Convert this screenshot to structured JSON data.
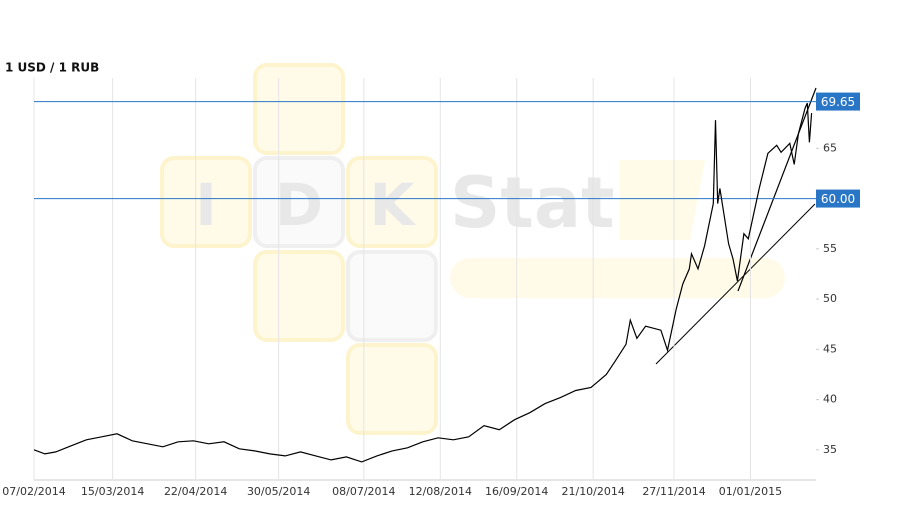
{
  "chart_data": {
    "type": "line",
    "title": "1 USD / 1 RUB",
    "watermark": {
      "letters": [
        "I",
        "D",
        "K"
      ],
      "word": "Stat"
    },
    "x": [
      "07/02/2014",
      "12/02/2014",
      "17/02/2014",
      "24/02/2014",
      "03/03/2014",
      "10/03/2014",
      "17/03/2014",
      "24/03/2014",
      "31/03/2014",
      "07/04/2014",
      "14/04/2014",
      "21/04/2014",
      "28/04/2014",
      "05/05/2014",
      "12/05/2014",
      "19/05/2014",
      "26/05/2014",
      "02/06/2014",
      "09/06/2014",
      "16/06/2014",
      "23/06/2014",
      "30/06/2014",
      "07/07/2014",
      "14/07/2014",
      "21/07/2014",
      "28/07/2014",
      "04/08/2014",
      "11/08/2014",
      "18/08/2014",
      "25/08/2014",
      "01/09/2014",
      "08/09/2014",
      "15/09/2014",
      "22/09/2014",
      "29/09/2014",
      "06/10/2014",
      "13/10/2014",
      "20/10/2014",
      "27/10/2014",
      "31/10/2014",
      "05/11/2014",
      "07/11/2014",
      "10/11/2014",
      "14/11/2014",
      "21/11/2014",
      "24/11/2014",
      "28/11/2014",
      "01/12/2014",
      "04/12/2014",
      "05/12/2014",
      "08/12/2014",
      "11/12/2014",
      "15/12/2014",
      "16/12/2014",
      "17/12/2014",
      "18/12/2014",
      "22/12/2014",
      "24/12/2014",
      "26/12/2014",
      "29/12/2014",
      "31/12/2014",
      "05/01/2015",
      "09/01/2015",
      "13/01/2015",
      "15/01/2015",
      "19/01/2015",
      "21/01/2015",
      "23/01/2015",
      "26/01/2015",
      "27/01/2015",
      "28/01/2015",
      "29/01/2015"
    ],
    "series": [
      {
        "color": "#000000",
        "values": [
          35.0,
          34.6,
          34.8,
          35.4,
          36.0,
          36.3,
          36.6,
          35.9,
          35.6,
          35.3,
          35.8,
          35.9,
          35.6,
          35.8,
          35.1,
          34.9,
          34.6,
          34.4,
          34.8,
          34.4,
          34.0,
          34.3,
          33.8,
          34.4,
          34.9,
          35.2,
          35.8,
          36.2,
          36.0,
          36.3,
          37.4,
          37.0,
          38.0,
          38.7,
          39.6,
          40.2,
          40.9,
          41.2,
          42.5,
          43.8,
          45.5,
          47.9,
          46.1,
          47.3,
          46.9,
          44.9,
          49.0,
          51.5,
          53.0,
          54.5,
          53.0,
          55.3,
          59.5,
          67.8,
          59.5,
          61.0,
          55.5,
          54.0,
          51.8,
          56.5,
          56.0,
          61.0,
          64.5,
          65.3,
          64.6,
          65.5,
          63.4,
          66.5,
          69.0,
          69.5,
          65.6,
          68.5
        ]
      }
    ],
    "reference_lines": [
      {
        "value": 69.65,
        "label": "69.65"
      },
      {
        "value": 60,
        "label": "60.00"
      }
    ],
    "reference_color": "#2a76c6",
    "xlim": [
      "07/02/2014",
      "31/01/2015"
    ],
    "xticks": [
      "07/02/2014",
      "15/03/2014",
      "22/04/2014",
      "30/05/2014",
      "08/07/2014",
      "12/08/2014",
      "16/09/2014",
      "21/10/2014",
      "27/11/2014",
      "01/01/2015"
    ],
    "ylim": [
      32,
      71
    ],
    "yticks": [
      35,
      40,
      45,
      50,
      55,
      60,
      65
    ],
    "grid": true
  }
}
